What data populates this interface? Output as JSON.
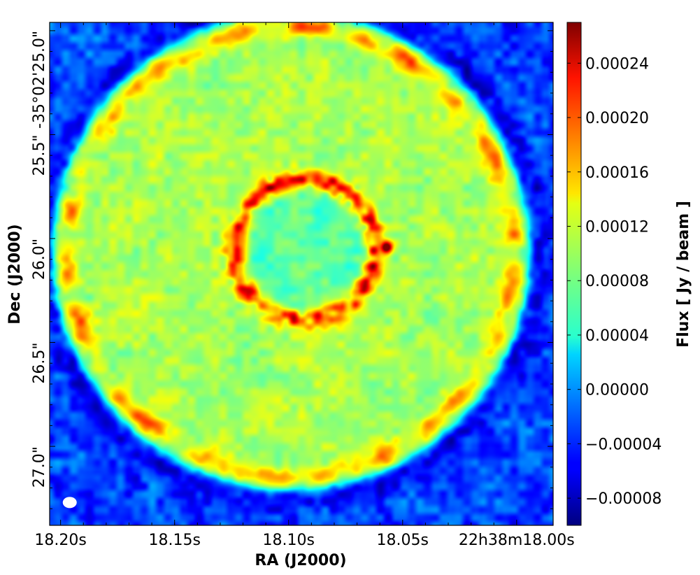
{
  "chart_data": {
    "type": "heatmap",
    "xlabel": "RA (J2000)",
    "ylabel": "Dec (J2000)",
    "colorbar_label": "Flux [ Jy / beam ]",
    "colormap": "jet",
    "x_ticks": [
      {
        "label": "18.20s",
        "value": 18.2
      },
      {
        "label": "18.15s",
        "value": 18.15
      },
      {
        "label": "18.10s",
        "value": 18.1
      },
      {
        "label": "18.05s",
        "value": 18.05
      },
      {
        "label": "22h38m18.00s",
        "value": 18.0
      }
    ],
    "y_ticks": [
      {
        "label": "-35°02'25.0\"",
        "value": 25.0
      },
      {
        "label": "25.5\"",
        "value": 25.5
      },
      {
        "label": "26.0\"",
        "value": 26.0
      },
      {
        "label": "26.5\"",
        "value": 26.5
      },
      {
        "label": "27.0\"",
        "value": 27.0
      }
    ],
    "colorbar_ticks": [
      {
        "label": "0.00024",
        "value": 0.00024
      },
      {
        "label": "0.00020",
        "value": 0.0002
      },
      {
        "label": "0.00016",
        "value": 0.00016
      },
      {
        "label": "0.00012",
        "value": 0.00012
      },
      {
        "label": "0.00008",
        "value": 8e-05
      },
      {
        "label": "0.00004",
        "value": 4e-05
      },
      {
        "label": "0.00000",
        "value": 0.0
      },
      {
        "label": "−0.00004",
        "value": -4e-05
      },
      {
        "label": "−0.00008",
        "value": -8e-05
      }
    ],
    "colorbar_range": [
      -0.0001,
      0.00027
    ],
    "x_range_seconds": [
      18.2048,
      17.984
    ],
    "dec_range_arcsec": [
      24.96,
      27.38
    ],
    "structures": {
      "background_flux": -3e-05,
      "disk": {
        "center_ra_s": 18.099,
        "center_dec_arcsec": 26.06,
        "radius_arcsec": 1.15,
        "flux": 0.0001,
        "edge_flux": 0.00015
      },
      "ring": {
        "center_ra_s": 18.093,
        "center_dec_arcsec": 26.05,
        "radius_arcsec": 0.34,
        "flux": 0.00022
      },
      "ring_interior_flux": 7e-05,
      "point_source": {
        "ra_s": 18.057,
        "dec_arcsec": 26.04,
        "flux": 0.00027
      },
      "beam": {
        "ra_s": 18.196,
        "dec_arcsec": 27.27
      }
    }
  }
}
